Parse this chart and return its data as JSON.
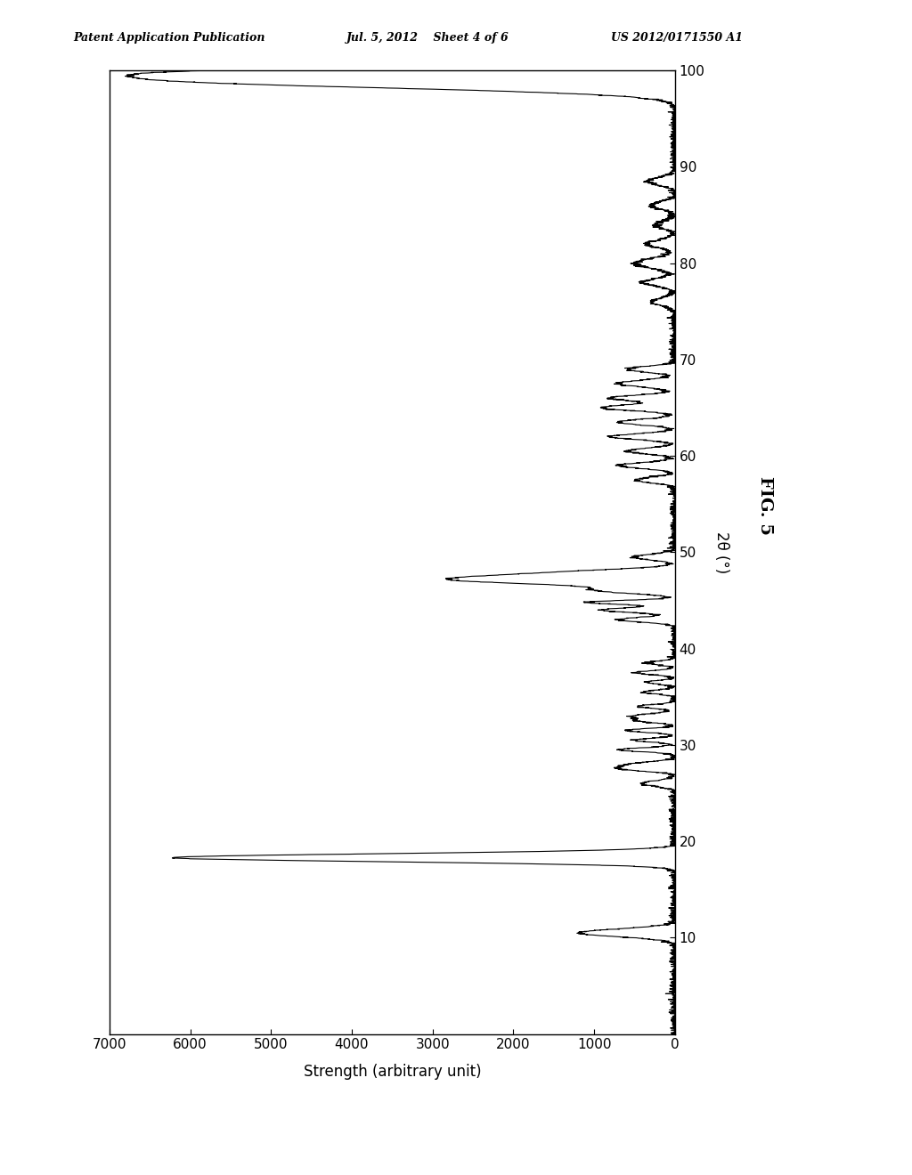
{
  "title": "FIG. 5",
  "xlabel": "2θ (°)",
  "ylabel": "Strength (arbitrary unit)",
  "header_left": "Patent Application Publication",
  "header_center": "Jul. 5, 2012    Sheet 4 of 6",
  "header_right": "US 2012/0171550 A1",
  "xlim": [
    0,
    100
  ],
  "ylim": [
    0,
    7000
  ],
  "xticks": [
    10,
    20,
    30,
    40,
    50,
    60,
    70,
    80,
    90,
    100
  ],
  "yticks": [
    0,
    1000,
    2000,
    3000,
    4000,
    5000,
    6000,
    7000
  ],
  "background_color": "#ffffff",
  "line_color": "#000000"
}
